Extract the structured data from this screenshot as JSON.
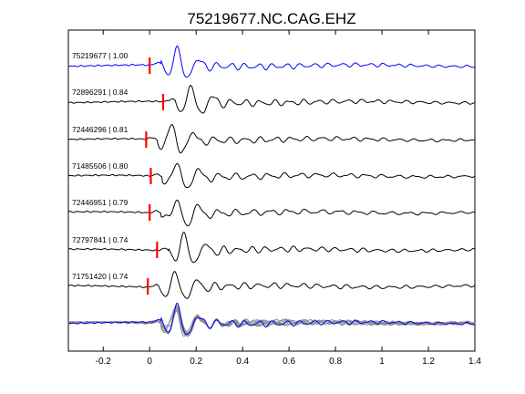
{
  "chart_data": {
    "type": "line",
    "title": "75219677.NC.CAG.EHZ",
    "xlabel": "",
    "ylabel": "",
    "xlim": [
      -0.35,
      1.4
    ],
    "xticks": [
      -0.2,
      0,
      0.2,
      0.4,
      0.6,
      0.8,
      1,
      1.2,
      1.4
    ],
    "xtick_labels": [
      "-0.2",
      "0",
      "0.2",
      "0.4",
      "0.6",
      "0.8",
      "1",
      "1.2",
      "1.4"
    ],
    "grid": false,
    "colors": {
      "reference": "#0000ff",
      "trace": "#000000",
      "pick": "#ff0000",
      "overlay": "#8c8c8c"
    },
    "series": [
      {
        "label": "75219677 | 1.00",
        "pick_time": 0.0,
        "color": "#0000ff"
      },
      {
        "label": "72896291 | 0.84",
        "pick_time": 0.058,
        "color": "#000000"
      },
      {
        "label": "72446296 | 0.81",
        "pick_time": -0.015,
        "color": "#000000"
      },
      {
        "label": "71485506 | 0.80",
        "pick_time": 0.005,
        "color": "#000000"
      },
      {
        "label": "72446951 | 0.79",
        "pick_time": 0.0,
        "color": "#000000"
      },
      {
        "label": "72797841 | 0.74",
        "pick_time": 0.032,
        "color": "#000000"
      },
      {
        "label": "71751420 | 0.74",
        "pick_time": -0.008,
        "color": "#000000"
      }
    ],
    "stacked_overlay": true
  }
}
